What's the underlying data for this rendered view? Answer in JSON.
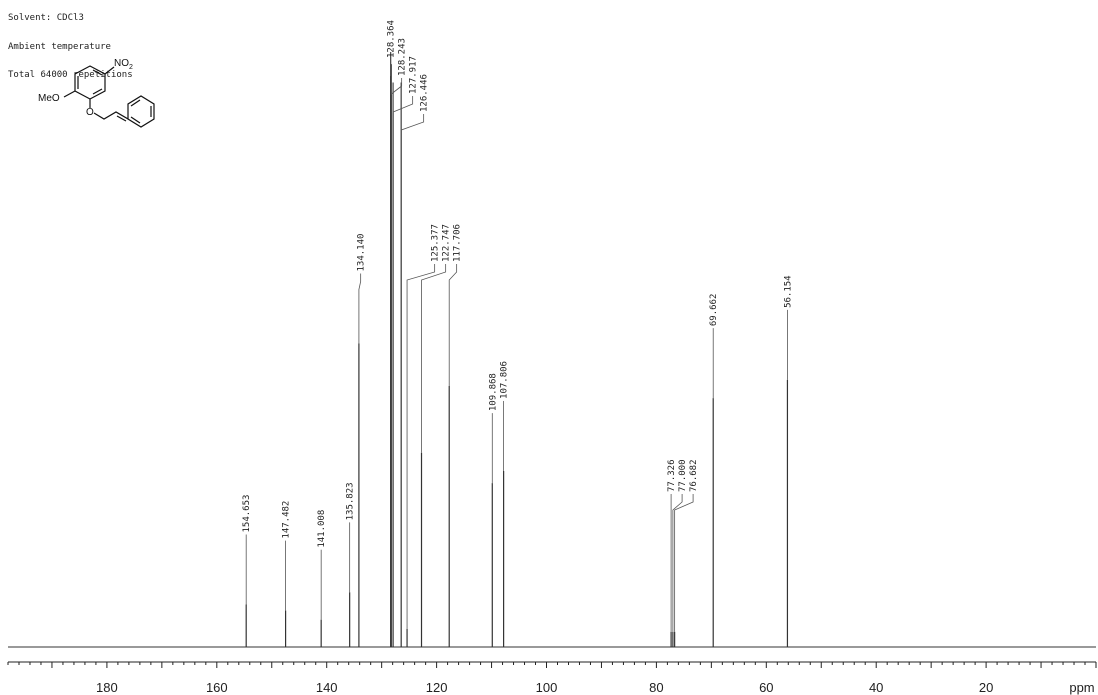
{
  "header": {
    "lines": [
      "Solvent: CDCl3",
      "Ambient temperature",
      "Total 64000 repetitions"
    ]
  },
  "molecule": {
    "label_meo": "MeO",
    "label_o": "O",
    "label_no2": "NO",
    "label_no2_sub": "2"
  },
  "chart_data": {
    "type": "line",
    "title": "",
    "xlabel": "",
    "unit_label": "ppm",
    "xlim": [
      198,
      0
    ],
    "x_reversed": true,
    "grid": false,
    "ticks": [
      180,
      160,
      140,
      120,
      100,
      80,
      60,
      40,
      20
    ],
    "peaks": [
      {
        "ppm": 154.653,
        "label": "154.653",
        "height": 0.07
      },
      {
        "ppm": 147.482,
        "label": "147.482",
        "height": 0.06
      },
      {
        "ppm": 141.008,
        "label": "141.008",
        "height": 0.045
      },
      {
        "ppm": 135.823,
        "label": "135.823",
        "height": 0.09
      },
      {
        "ppm": 134.14,
        "label": "134.140",
        "height": 0.5
      },
      {
        "ppm": 128.364,
        "label": "128.364",
        "height": 0.98
      },
      {
        "ppm": 128.243,
        "label": "128.243",
        "height": 0.96
      },
      {
        "ppm": 127.917,
        "label": "127.917",
        "height": 0.93
      },
      {
        "ppm": 126.446,
        "label": "126.446",
        "height": 0.93
      },
      {
        "ppm": 125.377,
        "label": "125.377",
        "height": 0.03
      },
      {
        "ppm": 122.747,
        "label": "122.747",
        "height": 0.32
      },
      {
        "ppm": 117.706,
        "label": "117.706",
        "height": 0.43
      },
      {
        "ppm": 109.868,
        "label": "109.868",
        "height": 0.27
      },
      {
        "ppm": 107.806,
        "label": "107.806",
        "height": 0.29
      },
      {
        "ppm": 77.326,
        "label": "77.326",
        "height": 0.025
      },
      {
        "ppm": 77.0,
        "label": "77.000",
        "height": 0.025
      },
      {
        "ppm": 76.682,
        "label": "76.682",
        "height": 0.025
      },
      {
        "ppm": 69.662,
        "label": "69.662",
        "height": 0.41
      },
      {
        "ppm": 56.154,
        "label": "56.154",
        "height": 0.44
      }
    ]
  }
}
